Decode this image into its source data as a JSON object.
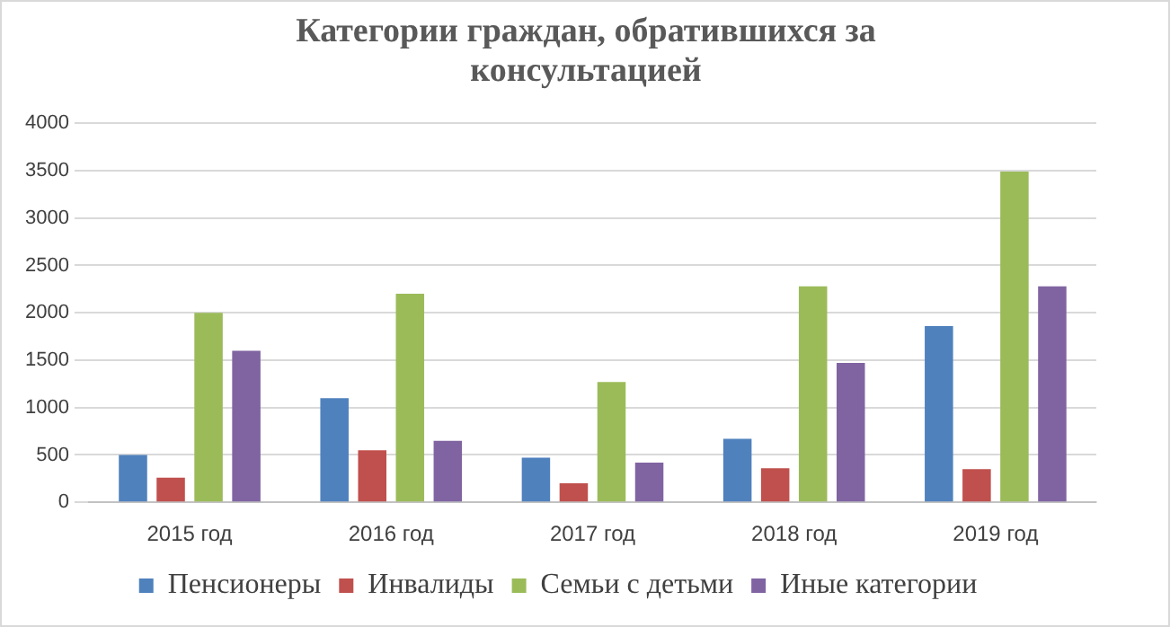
{
  "chart_data": {
    "type": "bar",
    "title": "Категории граждан, обратившихся за консультацией",
    "categories": [
      "2015 год",
      "2016 год",
      "2017 год",
      "2018 год",
      "2019 год"
    ],
    "series": [
      {
        "name": "Пенсионеры",
        "color": "#4f81bd",
        "values": [
          500,
          1100,
          470,
          670,
          1860
        ]
      },
      {
        "name": "Инвалиды",
        "color": "#c0504d",
        "values": [
          260,
          550,
          200,
          360,
          350
        ]
      },
      {
        "name": "Семьи с детьми",
        "color": "#9bbb59",
        "values": [
          2000,
          2200,
          1270,
          2280,
          3490
        ]
      },
      {
        "name": "Иные категории",
        "color": "#8064a2",
        "values": [
          1600,
          650,
          420,
          1470,
          2280
        ]
      }
    ],
    "ylim": [
      0,
      4000
    ],
    "yticks": [
      0,
      500,
      1000,
      1500,
      2000,
      2500,
      3000,
      3500,
      4000
    ],
    "grid": "y",
    "legend": "bottom"
  }
}
